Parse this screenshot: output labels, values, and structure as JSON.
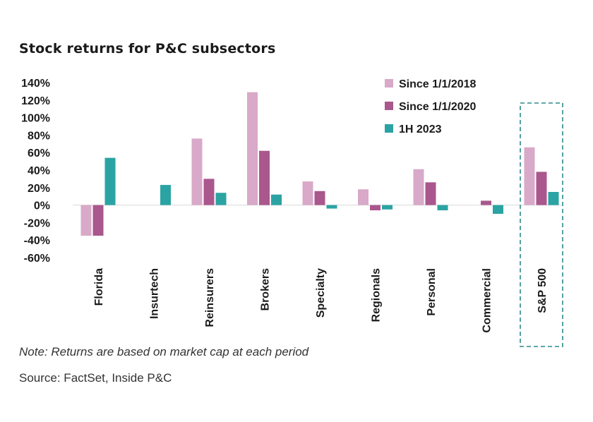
{
  "chart_data": {
    "type": "bar",
    "title": "Stock returns for P&C subsectors",
    "categories": [
      "Florida",
      "Insurtech",
      "Reinsurers",
      "Brokers",
      "Specialty",
      "Regionals",
      "Personal",
      "Commercial",
      "S&P 500"
    ],
    "series": [
      {
        "name": "Since 1/1/2018",
        "color": "#d8a9c8",
        "values": [
          -35,
          null,
          76,
          129,
          27,
          18,
          41,
          null,
          66
        ]
      },
      {
        "name": "Since 1/1/2020",
        "color": "#a9578d",
        "values": [
          -35,
          null,
          30,
          62,
          16,
          -6,
          26,
          5,
          38
        ]
      },
      {
        "name": "1H 2023",
        "color": "#2ba3a3",
        "values": [
          54,
          23,
          14,
          12,
          -4,
          -5,
          -6,
          -10,
          15
        ]
      }
    ],
    "yticks": [
      "140%",
      "120%",
      "100%",
      "80%",
      "60%",
      "40%",
      "20%",
      "0%",
      "-20%",
      "-40%",
      "-60%"
    ],
    "ylim": [
      -60,
      140
    ],
    "xlabel": "",
    "ylabel": "",
    "highlighted_category": "S&P 500",
    "legend_position": "top-right"
  },
  "note": "Note: Returns are based on market cap at each period",
  "source": "Source: FactSet, Inside P&C"
}
